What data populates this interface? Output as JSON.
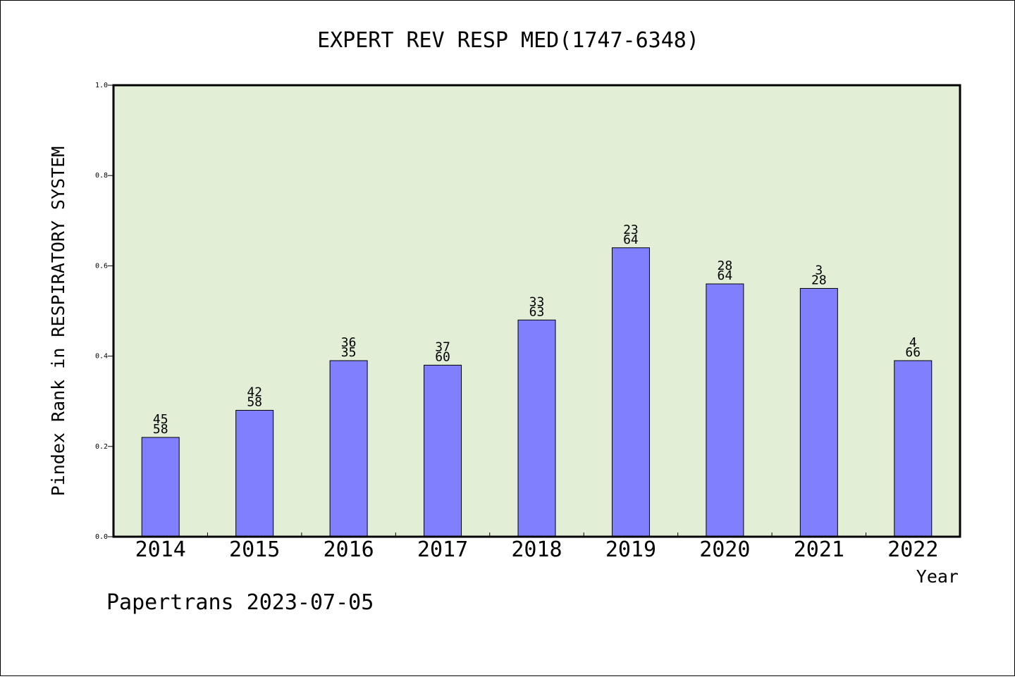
{
  "chart_data": {
    "type": "bar",
    "title": "EXPERT REV RESP MED(1747-6348)",
    "xlabel": "Year",
    "ylabel": "Pindex Rank in RESPIRATORY SYSTEM",
    "ylim": [
      0,
      1.0
    ],
    "yticks": [
      "0.0",
      "0.2",
      "0.4",
      "0.6",
      "0.8",
      "1.0"
    ],
    "categories": [
      "2014",
      "2015",
      "2016",
      "2017",
      "2018",
      "2019",
      "2020",
      "2021",
      "2022"
    ],
    "values": [
      0.22,
      0.28,
      0.39,
      0.38,
      0.48,
      0.64,
      0.56,
      0.55,
      0.39
    ],
    "labels_top": [
      "45",
      "42",
      "36",
      "37",
      "33",
      "23",
      "28",
      "3",
      "4"
    ],
    "labels_bottom": [
      "58",
      "58",
      "35",
      "60",
      "63",
      "64",
      "64",
      "28",
      "66"
    ],
    "grid": false,
    "colors": {
      "bar": "#8080ff",
      "plot_background": "#e2efd6",
      "bar_edge": "#000000"
    }
  },
  "footer": "Papertrans 2023-07-05"
}
